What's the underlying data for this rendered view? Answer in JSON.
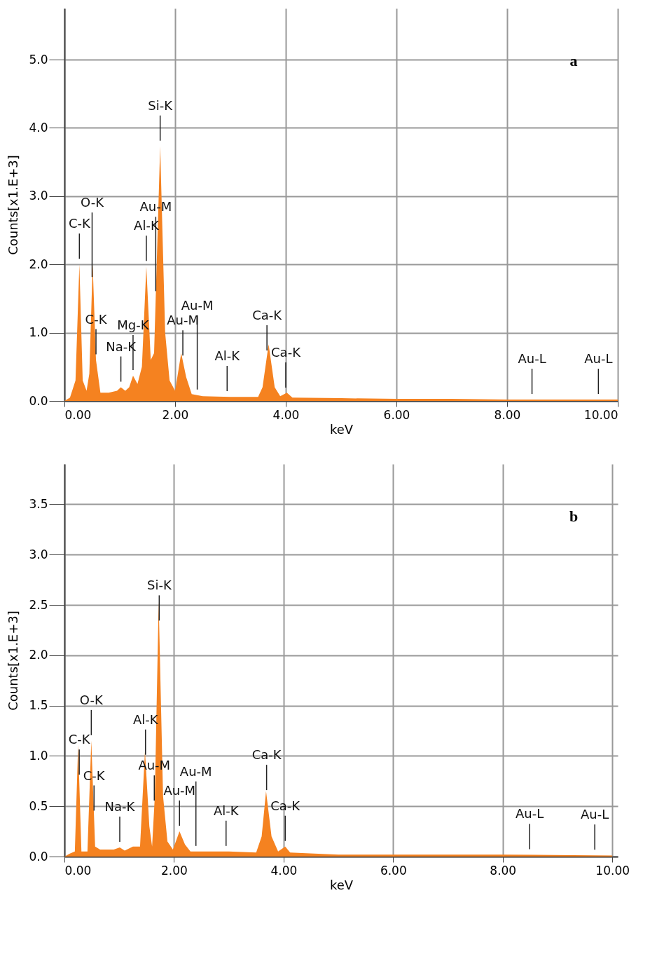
{
  "chart_data": [
    {
      "type": "area",
      "title": "a",
      "xlabel": "keV",
      "ylabel": "Counts[x1.E+3]",
      "grid": true,
      "xlim": [
        0,
        10
      ],
      "ylim": [
        0,
        5.75
      ],
      "xticks": [
        {
          "value": 0,
          "label": "0.00"
        },
        {
          "value": 2,
          "label": "2.00"
        },
        {
          "value": 4,
          "label": "4.00"
        },
        {
          "value": 6,
          "label": "6.00"
        },
        {
          "value": 8,
          "label": "8.00"
        },
        {
          "value": 10,
          "label": "10.00"
        }
      ],
      "yticks": [
        {
          "value": 0,
          "label": "0.0"
        },
        {
          "value": 1,
          "label": "1.0"
        },
        {
          "value": 2,
          "label": "2.0"
        },
        {
          "value": 3,
          "label": "3.0"
        },
        {
          "value": 4,
          "label": "4.0"
        },
        {
          "value": 5,
          "label": "5.0"
        }
      ],
      "series": [
        {
          "color": "#f58220",
          "x": [
            0,
            0.1,
            0.2,
            0.27,
            0.33,
            0.4,
            0.45,
            0.51,
            0.57,
            0.65,
            0.8,
            0.95,
            1.02,
            1.1,
            1.17,
            1.24,
            1.32,
            1.4,
            1.48,
            1.56,
            1.62,
            1.73,
            1.82,
            1.9,
            2.0,
            2.04,
            2.11,
            2.2,
            2.3,
            2.5,
            3.0,
            3.5,
            3.58,
            3.69,
            3.8,
            3.9,
            4.02,
            4.12,
            5,
            6,
            7,
            8,
            9,
            10
          ],
          "values": [
            0,
            0.05,
            0.3,
            2.0,
            0.3,
            0.15,
            0.4,
            2.0,
            0.6,
            0.12,
            0.12,
            0.15,
            0.2,
            0.15,
            0.2,
            0.37,
            0.25,
            0.5,
            1.97,
            0.6,
            0.7,
            3.73,
            1.0,
            0.3,
            0.15,
            0.35,
            0.7,
            0.35,
            0.1,
            0.07,
            0.06,
            0.06,
            0.2,
            0.83,
            0.2,
            0.07,
            0.12,
            0.05,
            0.04,
            0.03,
            0.03,
            0.02,
            0.02,
            0.02
          ]
        }
      ],
      "ref_lines": [
        {
          "axis": "x",
          "value": 0.27,
          "label": "C-K"
        },
        {
          "axis": "x",
          "value": 0.5,
          "label": "O-K"
        },
        {
          "axis": "x",
          "value": 0.57,
          "label": "C-K"
        },
        {
          "axis": "x",
          "value": 1.02,
          "label": "Na-K"
        },
        {
          "axis": "x",
          "value": 1.24,
          "label": "Mg-K"
        },
        {
          "axis": "x",
          "value": 1.48,
          "label": "Al-K"
        },
        {
          "axis": "x",
          "value": 1.65,
          "label": "Au-M"
        },
        {
          "axis": "x",
          "value": 1.73,
          "label": "Si-K"
        },
        {
          "axis": "x",
          "value": 2.14,
          "label": "Au-M"
        },
        {
          "axis": "x",
          "value": 2.4,
          "label": "Au-M"
        },
        {
          "axis": "x",
          "value": 2.94,
          "label": "Al-K"
        },
        {
          "axis": "x",
          "value": 3.66,
          "label": "Ca-K"
        },
        {
          "axis": "x",
          "value": 4.0,
          "label": "Ca-K"
        },
        {
          "axis": "x",
          "value": 8.45,
          "label": "Au-L"
        },
        {
          "axis": "x",
          "value": 9.65,
          "label": "Au-L"
        }
      ]
    },
    {
      "type": "area",
      "title": "b",
      "xlabel": "keV",
      "ylabel": "Counts[x1.E+3]",
      "grid": true,
      "xlim": [
        0,
        10.1
      ],
      "ylim": [
        0,
        3.9
      ],
      "xticks": [
        {
          "value": 0,
          "label": "0.00"
        },
        {
          "value": 2,
          "label": "2.00"
        },
        {
          "value": 4,
          "label": "4.00"
        },
        {
          "value": 6,
          "label": "6.00"
        },
        {
          "value": 8,
          "label": "8.00"
        },
        {
          "value": 10,
          "label": "10.00"
        }
      ],
      "yticks": [
        {
          "value": 0,
          "label": "0.0"
        },
        0.5,
        {
          "value": 1,
          "label": "1.0"
        },
        1.5,
        {
          "value": 2,
          "label": "2.0"
        },
        2.5,
        {
          "value": 3,
          "label": "3.0"
        },
        3.5
      ],
      "series": [
        {
          "color": "#f58220",
          "x": [
            0,
            0.1,
            0.19,
            0.25,
            0.31,
            0.42,
            0.49,
            0.56,
            0.65,
            0.9,
            1.01,
            1.1,
            1.25,
            1.38,
            1.47,
            1.55,
            1.6,
            1.65,
            1.72,
            1.8,
            1.88,
            1.98,
            2.1,
            2.2,
            2.3,
            3,
            3.5,
            3.6,
            3.68,
            3.78,
            3.9,
            4.03,
            4.12,
            5,
            6,
            8,
            10
          ],
          "values": [
            0,
            0.03,
            0.05,
            1.11,
            0.05,
            0.05,
            1.15,
            0.1,
            0.07,
            0.07,
            0.09,
            0.06,
            0.1,
            0.1,
            1.05,
            0.3,
            0.1,
            0.6,
            2.53,
            0.6,
            0.15,
            0.07,
            0.25,
            0.12,
            0.05,
            0.05,
            0.04,
            0.2,
            0.65,
            0.2,
            0.05,
            0.1,
            0.04,
            0.02,
            0.02,
            0.02,
            0.01
          ]
        }
      ],
      "ref_lines": [
        {
          "axis": "x",
          "value": 0.27,
          "label": "C-K"
        },
        {
          "axis": "x",
          "value": 0.49,
          "label": "O-K"
        },
        {
          "axis": "x",
          "value": 0.54,
          "label": "C-K"
        },
        {
          "axis": "x",
          "value": 1.01,
          "label": "Na-K"
        },
        {
          "axis": "x",
          "value": 1.48,
          "label": "Al-K"
        },
        {
          "axis": "x",
          "value": 1.64,
          "label": "Au-M"
        },
        {
          "axis": "x",
          "value": 1.73,
          "label": "Si-K"
        },
        {
          "axis": "x",
          "value": 2.1,
          "label": "Au-M"
        },
        {
          "axis": "x",
          "value": 2.4,
          "label": "Au-M"
        },
        {
          "axis": "x",
          "value": 2.95,
          "label": "Al-K"
        },
        {
          "axis": "x",
          "value": 3.69,
          "label": "Ca-K"
        },
        {
          "axis": "x",
          "value": 4.03,
          "label": "Ca-K"
        },
        {
          "axis": "x",
          "value": 8.49,
          "label": "Au-L"
        },
        {
          "axis": "x",
          "value": 9.68,
          "label": "Au-L"
        }
      ]
    }
  ]
}
